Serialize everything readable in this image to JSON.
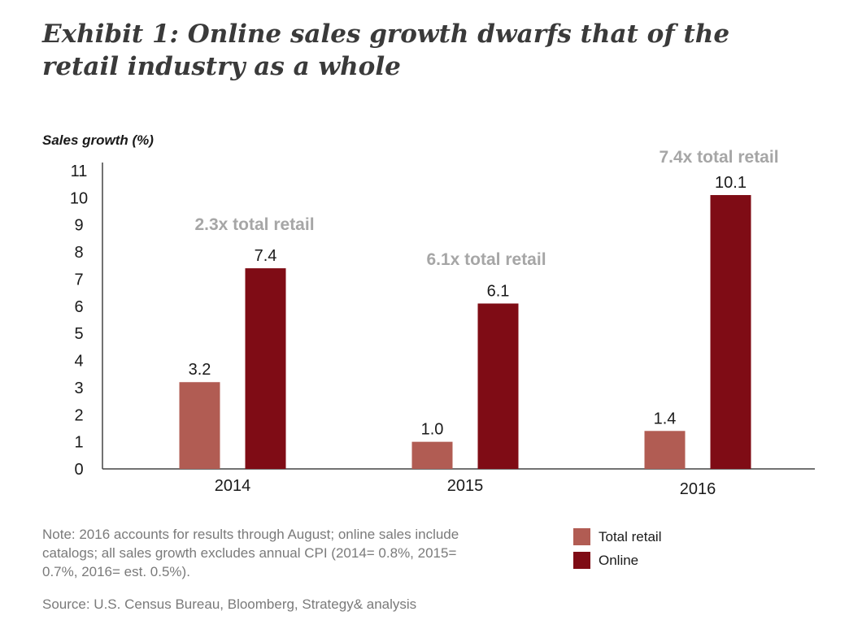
{
  "title": "Exhibit 1: Online sales growth dwarfs that of the retail industry as a whole",
  "note": "Note: 2016 accounts for results through August; online sales include catalogs; all sales growth excludes annual CPI (2014= 0.8%, 2015= 0.7%, 2016= est. 0.5%).",
  "source": "Source: U.S. Census Bureau, Bloomberg, Strategy& analysis",
  "chart_data": {
    "type": "bar",
    "ylabel": "Sales growth (%)",
    "xlabel": "",
    "ylim": [
      0,
      11
    ],
    "yticks": [
      "0",
      "1",
      "2",
      "3",
      "4",
      "5",
      "6",
      "7",
      "8",
      "9",
      "10",
      "11"
    ],
    "grid": false,
    "legend_position": "bottom-right",
    "categories": [
      "2014",
      "2015",
      "2016"
    ],
    "series": [
      {
        "name": "Total retail",
        "values": [
          3.2,
          1.0,
          1.4
        ],
        "labels": [
          "3.2",
          "1.0",
          "1.4"
        ],
        "color": "#b15c53"
      },
      {
        "name": "Online",
        "values": [
          7.4,
          6.1,
          10.1
        ],
        "labels": [
          "7.4",
          "6.1",
          "10.1"
        ],
        "color": "#7f0c15"
      }
    ],
    "annotations": [
      "2.3x total retail",
      "6.1x total retail",
      "7.4x total retail"
    ],
    "annotation_color": "#a6a6a6"
  }
}
